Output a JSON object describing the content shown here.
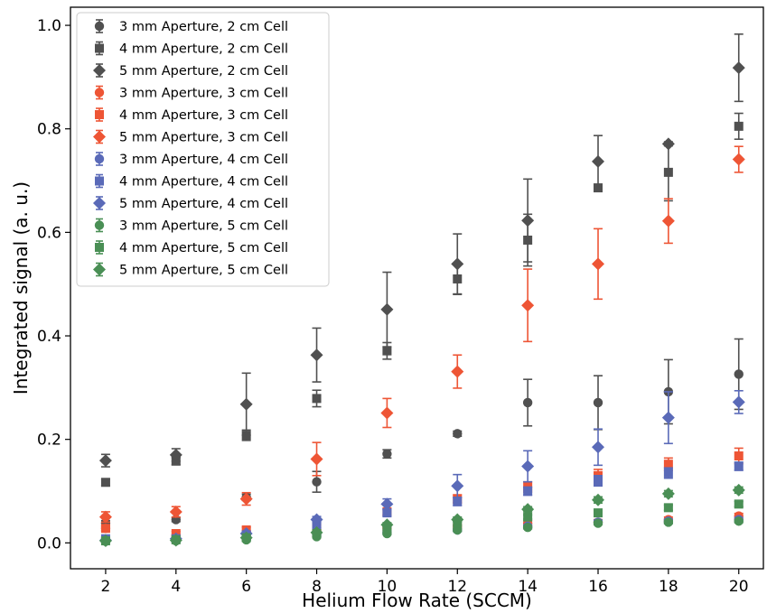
{
  "chart_data": {
    "type": "scatter",
    "xlabel": "Helium Flow Rate (SCCM)",
    "ylabel": "Integrated signal (a. u.)",
    "xlim": [
      1.0,
      20.7
    ],
    "ylim": [
      -0.05,
      1.035
    ],
    "xticks": [
      "2",
      "4",
      "6",
      "8",
      "10",
      "12",
      "14",
      "16",
      "18",
      "20"
    ],
    "yticks": [
      "0.0",
      "0.2",
      "0.4",
      "0.6",
      "0.8",
      "1.0"
    ],
    "legend_position": "upper-left",
    "grid": false,
    "colors": {
      "2 cm Cell": "#505050",
      "3 cm Cell": "#ee5535",
      "4 cm Cell": "#5a6ab8",
      "5 cm Cell": "#4a8f55"
    },
    "x": [
      2,
      4,
      6,
      8,
      10,
      12,
      14,
      16,
      18,
      20
    ],
    "series": [
      {
        "name": "3 mm Aperture, 2 cm Cell",
        "marker": "circle",
        "color": "#505050",
        "values": [
          0.038,
          0.045,
          0.088,
          0.118,
          0.172,
          0.211,
          0.271,
          0.271,
          0.292,
          0.326
        ],
        "errors": [
          0.005,
          0.004,
          0.006,
          0.02,
          0.008,
          0.005,
          0.045,
          0.052,
          0.062,
          0.068
        ]
      },
      {
        "name": "4 mm Aperture, 2 cm Cell",
        "marker": "square",
        "color": "#505050",
        "values": [
          0.117,
          0.158,
          0.208,
          0.279,
          0.371,
          0.51,
          0.585,
          0.686,
          0.716,
          0.805
        ],
        "errors": [
          0.006,
          0.007,
          0.01,
          0.016,
          0.016,
          0.03,
          0.05,
          0.006,
          0.055,
          0.025
        ]
      },
      {
        "name": "5 mm Aperture, 2 cm Cell",
        "marker": "diamond",
        "color": "#505050",
        "values": [
          0.159,
          0.17,
          0.268,
          0.363,
          0.451,
          0.539,
          0.623,
          0.737,
          0.771,
          0.918
        ],
        "errors": [
          0.012,
          0.012,
          0.06,
          0.052,
          0.072,
          0.058,
          0.08,
          0.05,
          0.004,
          0.065
        ]
      },
      {
        "name": "3 mm Aperture, 3 cm Cell",
        "marker": "circle",
        "color": "#ee5535",
        "values": [
          0.028,
          0.012,
          0.02,
          0.025,
          0.028,
          0.032,
          0.038,
          0.04,
          0.045,
          0.052
        ],
        "errors": [
          0.004,
          0.004,
          0.004,
          0.004,
          0.004,
          0.004,
          0.005,
          0.005,
          0.005,
          0.005
        ]
      },
      {
        "name": "4 mm Aperture, 3 cm Cell",
        "marker": "square",
        "color": "#ee5535",
        "values": [
          0.028,
          0.018,
          0.025,
          0.03,
          0.06,
          0.085,
          0.108,
          0.13,
          0.152,
          0.168
        ],
        "errors": [
          0.005,
          0.004,
          0.005,
          0.005,
          0.006,
          0.008,
          0.01,
          0.012,
          0.012,
          0.015
        ]
      },
      {
        "name": "5 mm Aperture, 3 cm Cell",
        "marker": "diamond",
        "color": "#ee5535",
        "values": [
          0.05,
          0.06,
          0.085,
          0.162,
          0.251,
          0.331,
          0.459,
          0.539,
          0.622,
          0.741
        ],
        "errors": [
          0.01,
          0.01,
          0.012,
          0.032,
          0.028,
          0.032,
          0.07,
          0.068,
          0.043,
          0.025
        ]
      },
      {
        "name": "3 mm Aperture, 4 cm Cell",
        "marker": "circle",
        "color": "#5a6ab8",
        "values": [
          0.005,
          0.005,
          0.008,
          0.015,
          0.02,
          0.025,
          0.032,
          0.04,
          0.042,
          0.045
        ],
        "errors": [
          0.002,
          0.002,
          0.002,
          0.003,
          0.003,
          0.003,
          0.003,
          0.004,
          0.004,
          0.004
        ]
      },
      {
        "name": "4 mm Aperture, 4 cm Cell",
        "marker": "square",
        "color": "#5a6ab8",
        "values": [
          0.008,
          0.008,
          0.015,
          0.035,
          0.058,
          0.08,
          0.1,
          0.12,
          0.135,
          0.148
        ],
        "errors": [
          0.002,
          0.002,
          0.004,
          0.005,
          0.006,
          0.008,
          0.008,
          0.01,
          0.01,
          0.008
        ]
      },
      {
        "name": "5 mm Aperture, 4 cm Cell",
        "marker": "diamond",
        "color": "#5a6ab8",
        "values": [
          0.005,
          0.008,
          0.018,
          0.045,
          0.075,
          0.11,
          0.148,
          0.185,
          0.242,
          0.272
        ],
        "errors": [
          0.003,
          0.003,
          0.005,
          0.006,
          0.01,
          0.022,
          0.03,
          0.035,
          0.05,
          0.022
        ]
      },
      {
        "name": "3 mm Aperture, 5 cm Cell",
        "marker": "circle",
        "color": "#4a8f55",
        "values": [
          0.003,
          0.004,
          0.006,
          0.012,
          0.018,
          0.025,
          0.03,
          0.038,
          0.04,
          0.042
        ],
        "errors": [
          0.002,
          0.002,
          0.002,
          0.002,
          0.002,
          0.003,
          0.003,
          0.003,
          0.003,
          0.003
        ]
      },
      {
        "name": "4 mm Aperture, 5 cm Cell",
        "marker": "square",
        "color": "#4a8f55",
        "values": [
          0.004,
          0.006,
          0.01,
          0.018,
          0.028,
          0.038,
          0.05,
          0.058,
          0.068,
          0.075
        ],
        "errors": [
          0.002,
          0.002,
          0.002,
          0.003,
          0.003,
          0.004,
          0.004,
          0.005,
          0.005,
          0.005
        ]
      },
      {
        "name": "5 mm Aperture, 5 cm Cell",
        "marker": "diamond",
        "color": "#4a8f55",
        "values": [
          0.004,
          0.005,
          0.01,
          0.02,
          0.035,
          0.045,
          0.065,
          0.083,
          0.095,
          0.102
        ],
        "errors": [
          0.002,
          0.002,
          0.002,
          0.003,
          0.004,
          0.005,
          0.005,
          0.006,
          0.006,
          0.006
        ]
      }
    ]
  }
}
